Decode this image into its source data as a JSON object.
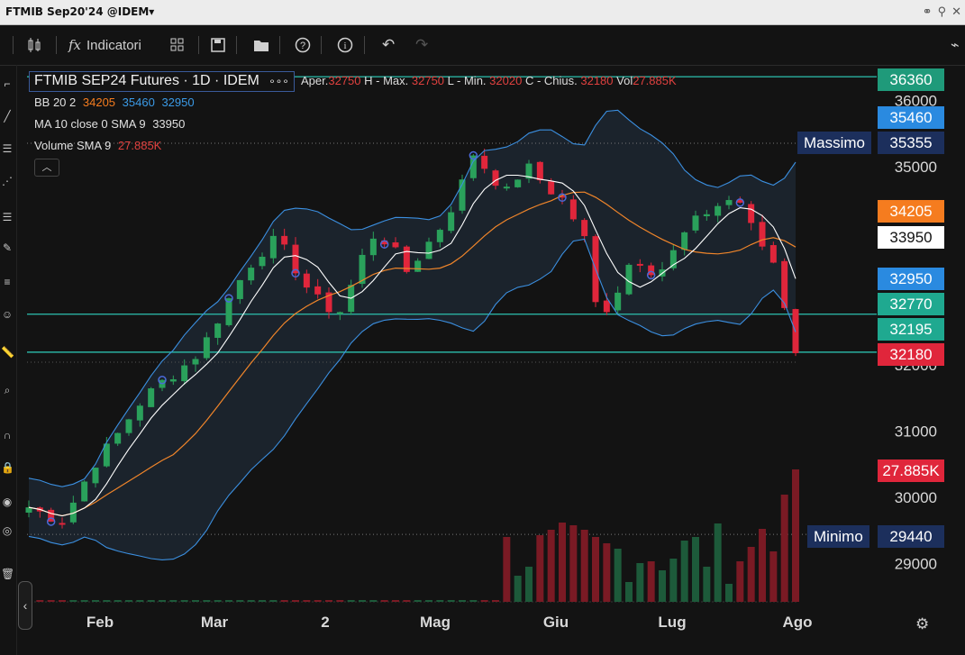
{
  "titlebar": {
    "title": "FTMIB Sep20'24 @IDEM▾"
  },
  "toolbar": {
    "indicators_label": "Indicatori"
  },
  "legend": {
    "symbol": "FTMIB SEP24 Futures · 1D · IDEM",
    "symbol_more": "∘∘∘",
    "open_label": "Aper.",
    "open": "32750",
    "high_label": "H - Max.",
    "high": "32750",
    "low_label": "L - Min.",
    "low": "32020",
    "close_label": "C - Chius.",
    "close": "32180",
    "vol_label": "Vol",
    "vol": "27.885K",
    "bb_label": "BB 20 2",
    "bb_mid": "34205",
    "bb_up": "35460",
    "bb_low": "32950",
    "ma_label": "MA 10 close 0 SMA 9",
    "ma_val": "33950",
    "vol_sma_label": "Volume SMA 9",
    "vol_sma_val": "27.885K",
    "collapse_icon": "chevron-up-icon"
  },
  "price_tags": {
    "massimo_label": "Massimo",
    "massimo": "35355",
    "minimo_label": "Minimo",
    "minimo": "29440",
    "t36360": "36360",
    "t35460": "35460",
    "t34205": "34205",
    "t33950": "33950",
    "t32950": "32950",
    "t32770": "32770",
    "t32195": "32195",
    "t32180": "32180",
    "t_vol": "27.885K"
  },
  "colors": {
    "up": "#2aa15b",
    "down": "#e0263b",
    "bb": "#3b8fe0",
    "ma": "#ffffff",
    "sma": "#f0852a",
    "hline": "#2ab0a0"
  },
  "chart_data": {
    "type": "candlestick",
    "y_ticks": [
      36000,
      35000,
      32000,
      31000,
      30000,
      29000
    ],
    "x_labels": [
      "Feb",
      "Mar",
      "2",
      "Mag",
      "Giu",
      "Lug",
      "Ago"
    ],
    "ylim": [
      28700,
      36450
    ],
    "horizontal_lines": [
      36360,
      32770,
      32195
    ],
    "last": {
      "open": 32750,
      "high": 32750,
      "low": 32020,
      "close": 32180,
      "volume": "27.885K"
    },
    "indicators": {
      "bb_mid": 34205,
      "bb_upper": 35460,
      "bb_lower": 32950,
      "ma10": 33950
    },
    "session_high": 35355,
    "session_low": 29440
  }
}
